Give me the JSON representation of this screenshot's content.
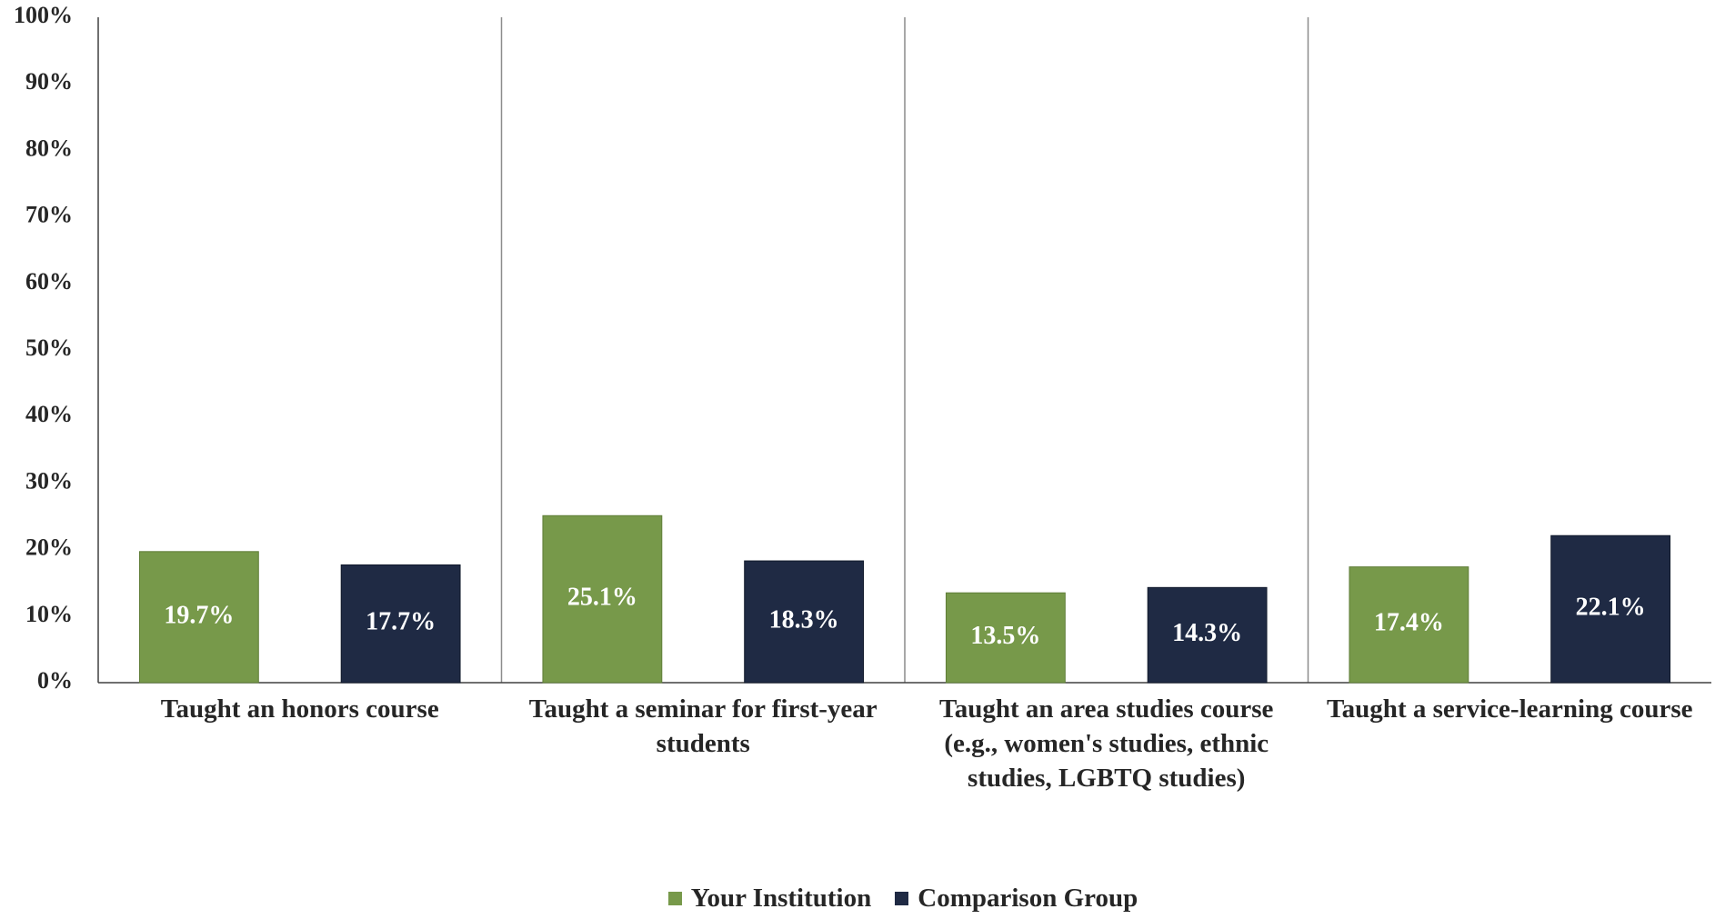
{
  "chart_data": {
    "type": "bar",
    "categories": [
      "Taught an honors course",
      "Taught a seminar for first-year students",
      "Taught an area studies course (e.g., women's studies, ethnic studies, LGBTQ studies)",
      "Taught a service-learning course"
    ],
    "series": [
      {
        "name": "Your Institution",
        "color": "#77994a",
        "values": [
          19.7,
          25.1,
          13.5,
          17.4
        ],
        "value_labels": [
          "19.7%",
          "25.1%",
          "13.5%",
          "17.4%"
        ]
      },
      {
        "name": "Comparison Group",
        "color": "#1f2a44",
        "values": [
          17.7,
          18.3,
          14.3,
          22.1
        ],
        "value_labels": [
          "17.7%",
          "18.3%",
          "14.3%",
          "22.1%"
        ]
      }
    ],
    "ylim": [
      0,
      100
    ],
    "yticks": [
      {
        "value": 0,
        "label": "0%"
      },
      {
        "value": 10,
        "label": "10%"
      },
      {
        "value": 20,
        "label": "20%"
      },
      {
        "value": 30,
        "label": "30%"
      },
      {
        "value": 40,
        "label": "40%"
      },
      {
        "value": 50,
        "label": "50%"
      },
      {
        "value": 60,
        "label": "60%"
      },
      {
        "value": 70,
        "label": "70%"
      },
      {
        "value": 80,
        "label": "80%"
      },
      {
        "value": 90,
        "label": "90%"
      },
      {
        "value": 100,
        "label": "100%"
      }
    ],
    "legend": "bottom"
  }
}
